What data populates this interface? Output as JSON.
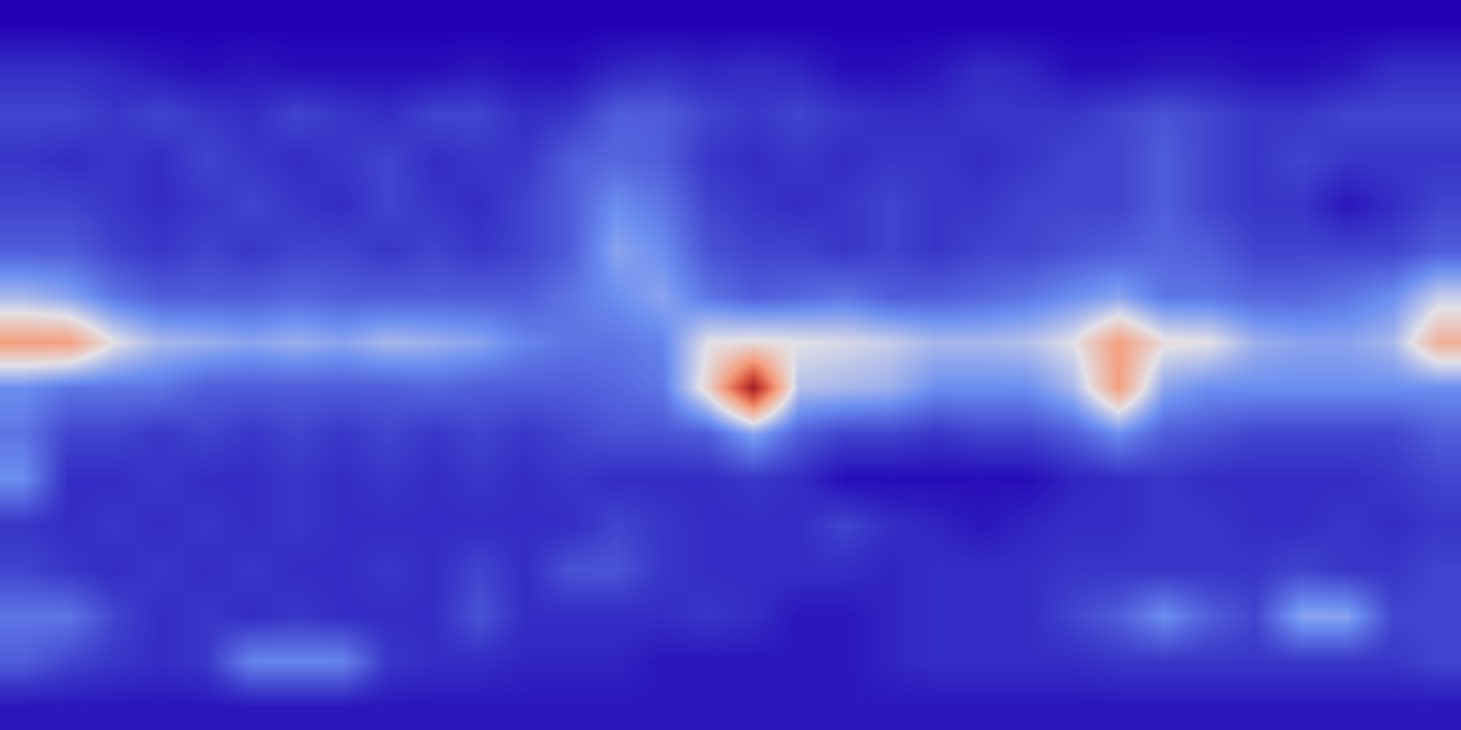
{
  "chart_data": {
    "type": "heatmap",
    "tick_labels": false,
    "grid": false,
    "zlim": [
      0,
      10
    ],
    "cells": [
      [
        0,
        0,
        0,
        0,
        0,
        0,
        0,
        0,
        0,
        0,
        0,
        0,
        0,
        0,
        0,
        0,
        0,
        0,
        0,
        0,
        0,
        0,
        0,
        0,
        0,
        0,
        0,
        0,
        0,
        0,
        0,
        0
      ],
      [
        1,
        1,
        0.8,
        0.5,
        0.3,
        0.5,
        0.3,
        0.3,
        0.3,
        0.3,
        0.5,
        0.3,
        0.3,
        0.8,
        1,
        0.8,
        1,
        0.8,
        0.3,
        0.3,
        0.5,
        1,
        0.8,
        0.3,
        0.3,
        0.5,
        0.5,
        0.3,
        0.3,
        0.5,
        1,
        1
      ],
      [
        1.5,
        1.5,
        1.2,
        1.5,
        1.2,
        1,
        1.5,
        1.2,
        1,
        1.5,
        1.5,
        1,
        1.2,
        2,
        2,
        1.5,
        1.2,
        1.5,
        1.2,
        1,
        1,
        1.2,
        1.2,
        1.2,
        1.5,
        1.8,
        1.5,
        1.2,
        1.2,
        1.5,
        1.5,
        1.5
      ],
      [
        1.2,
        1,
        1.2,
        1,
        1.5,
        1.2,
        1,
        1.2,
        1.5,
        1,
        1.2,
        1.2,
        2,
        2.2,
        2,
        1.2,
        1,
        1.2,
        1,
        1.2,
        1.2,
        1,
        1.2,
        1.5,
        1.5,
        2,
        1.5,
        1.2,
        1.5,
        1.2,
        1.2,
        1.2
      ],
      [
        1.5,
        1.5,
        1.2,
        1,
        1.2,
        1.5,
        1.2,
        1,
        1.5,
        1.2,
        1,
        1.5,
        2,
        3,
        2.5,
        1.5,
        1.2,
        1,
        1.2,
        1.5,
        1.2,
        1.2,
        1.5,
        1.5,
        1.5,
        2,
        1.5,
        1.2,
        1.2,
        0.5,
        1,
        1.5
      ],
      [
        2,
        2,
        1.5,
        1.2,
        1.5,
        1.2,
        1.5,
        1.5,
        1.2,
        1.5,
        1.2,
        1.5,
        2,
        3.5,
        3,
        1.8,
        1.5,
        1.5,
        1.2,
        1.5,
        1.2,
        1.5,
        1.5,
        1.8,
        2,
        2.2,
        2,
        1.5,
        1.5,
        1.5,
        1.5,
        2
      ],
      [
        4,
        3.5,
        2.5,
        2,
        2,
        2,
        2.2,
        2,
        2,
        2,
        2,
        2,
        2.5,
        3,
        3.5,
        2.5,
        2,
        2.2,
        2.5,
        2,
        2,
        2.2,
        2.5,
        3,
        3.5,
        2.5,
        2.5,
        2.2,
        2.2,
        2.5,
        3,
        4.5
      ],
      [
        7,
        7,
        5,
        4,
        3.8,
        3.5,
        3.8,
        3.5,
        4,
        3.8,
        3.5,
        2.8,
        2.5,
        2.5,
        2.8,
        5,
        5.2,
        5,
        4.8,
        4.5,
        4,
        4,
        4.2,
        5,
        7,
        5.2,
        5,
        3.8,
        3.5,
        3.5,
        4,
        6.5
      ],
      [
        3,
        2.5,
        2.5,
        2.5,
        2,
        2,
        2,
        2,
        2,
        2.2,
        2,
        2,
        2,
        2.2,
        2.5,
        5.5,
        10,
        4.2,
        4,
        3.8,
        3,
        3,
        3,
        4,
        7,
        3.5,
        3,
        3,
        3,
        3,
        3,
        3
      ],
      [
        2.5,
        1.5,
        1.5,
        1.2,
        1.5,
        1.2,
        1.5,
        1.2,
        1.5,
        1.2,
        1.5,
        1.2,
        1.5,
        1.8,
        1.8,
        2,
        3.5,
        2,
        1.5,
        1.5,
        1.2,
        1.5,
        1.5,
        2,
        3,
        2,
        1.8,
        1.5,
        1.5,
        1.5,
        1.5,
        2
      ],
      [
        3,
        1,
        1,
        1.2,
        1,
        1,
        1.2,
        1,
        1.2,
        1,
        1.2,
        1,
        1.2,
        1,
        1,
        1,
        1.2,
        1,
        0.3,
        0.3,
        0.3,
        0.3,
        0.3,
        0.8,
        1,
        1.2,
        1,
        1,
        1,
        1,
        1.2,
        1.5
      ],
      [
        1.2,
        1,
        1.2,
        1,
        1.2,
        1,
        1.2,
        1,
        1,
        1,
        1,
        1,
        1,
        1.5,
        1.2,
        1,
        1,
        1,
        1.5,
        1,
        0.8,
        0.5,
        0.8,
        1,
        1,
        1.2,
        1.2,
        1,
        1,
        1.2,
        1,
        1.2
      ],
      [
        1.5,
        1.2,
        1,
        1.2,
        1,
        1.2,
        1,
        1,
        1.2,
        1,
        1.5,
        1,
        1.8,
        1.8,
        1.2,
        1,
        1,
        1,
        1,
        0.8,
        1,
        1,
        1,
        1.2,
        1.2,
        1.2,
        1.2,
        1.2,
        1.5,
        1.2,
        1.2,
        1.5
      ],
      [
        2.5,
        2.5,
        1.5,
        1,
        1.2,
        1,
        1.2,
        1,
        1,
        1,
        1.8,
        1,
        1,
        1,
        1,
        1.2,
        1,
        0.5,
        0.5,
        0.8,
        1,
        1,
        1,
        1.5,
        2,
        3,
        2,
        1.5,
        3.5,
        3.5,
        1.5,
        1.5
      ],
      [
        2,
        1.5,
        1.2,
        1,
        1.2,
        2.8,
        2.8,
        2.8,
        1.2,
        1,
        1,
        0.8,
        0.8,
        0.8,
        0.5,
        0.5,
        0.5,
        0.5,
        0.5,
        0.8,
        1,
        1,
        1,
        1,
        1.2,
        1.2,
        1.2,
        1.2,
        1.2,
        1.2,
        1.2,
        1.5
      ],
      [
        0.5,
        0.5,
        0.5,
        0.5,
        0.5,
        0.5,
        0.5,
        0.5,
        0.5,
        0.5,
        0.5,
        0.5,
        0.5,
        0.5,
        0.5,
        0.5,
        0.5,
        0.5,
        0.5,
        0.5,
        0.5,
        0.5,
        0.5,
        0.5,
        0.5,
        0.5,
        0.5,
        0.5,
        0.5,
        0.5,
        0.5,
        0.5
      ]
    ]
  }
}
